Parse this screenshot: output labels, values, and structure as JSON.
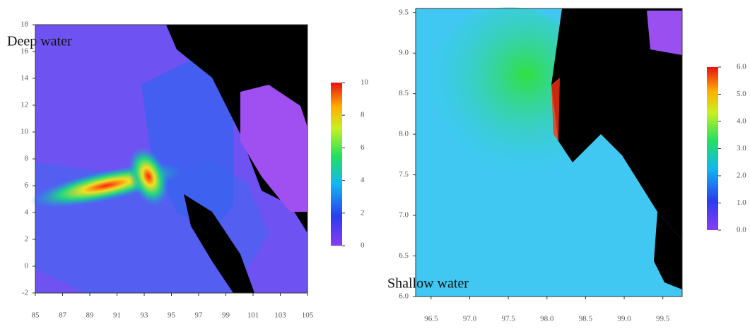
{
  "chart_data": [
    {
      "type": "heatmap",
      "annotation": "Deep water",
      "xlim": [
        85,
        105
      ],
      "xticks": [
        85,
        87,
        89,
        91,
        93,
        95,
        97,
        99,
        101,
        103,
        105
      ],
      "ylim": [
        -2,
        18
      ],
      "yticks": [
        -2,
        0,
        2,
        4,
        6,
        8,
        10,
        12,
        14,
        16,
        18
      ],
      "colorbar": {
        "lim": [
          0,
          10
        ],
        "ticks": [
          0,
          2,
          4,
          6,
          8,
          10
        ]
      }
    },
    {
      "type": "heatmap",
      "annotation": "Shallow water",
      "xlim": [
        96.3,
        99.75
      ],
      "xticks": [
        96.5,
        {
          "value": 97,
          "label": "97.0"
        },
        97.5,
        {
          "value": 98,
          "label": "98.0"
        },
        98.5,
        {
          "value": 99,
          "label": "99.0"
        },
        99.5
      ],
      "ylim": [
        6.0,
        9.55
      ],
      "yticks": [
        {
          "value": 6,
          "label": "6.0"
        },
        6.5,
        {
          "value": 7,
          "label": "7.0"
        },
        7.5,
        {
          "value": 8,
          "label": "8.0"
        },
        8.5,
        {
          "value": 9,
          "label": "9.0"
        },
        9.5
      ],
      "colorbar": {
        "lim": [
          0,
          6
        ],
        "ticks": [
          {
            "value": 0,
            "label": "0.0"
          },
          {
            "value": 1,
            "label": "1.0"
          },
          {
            "value": 2,
            "label": "2.0"
          },
          {
            "value": 3,
            "label": "3.0"
          },
          {
            "value": 4,
            "label": "4.0"
          },
          {
            "value": 5,
            "label": "5.0"
          },
          {
            "value": 6,
            "label": "6.0"
          }
        ]
      }
    }
  ]
}
